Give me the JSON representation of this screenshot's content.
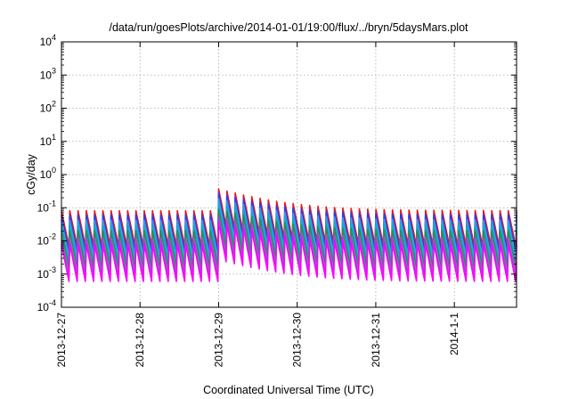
{
  "chart_data": {
    "type": "line",
    "title": "/data/run/goesPlots/archive/2014-01-01/19:00/flux/../bryn/5daysMars.plot",
    "xlabel": "Coordinated Universal Time (UTC)",
    "ylabel": "cGy/day",
    "yscale": "log",
    "ylim": [
      0.0001,
      10000
    ],
    "yticks": [
      {
        "base": "10",
        "exp": "-4"
      },
      {
        "base": "10",
        "exp": "-3"
      },
      {
        "base": "10",
        "exp": "-2"
      },
      {
        "base": "10",
        "exp": "-1"
      },
      {
        "base": "10",
        "exp": "0"
      },
      {
        "base": "10",
        "exp": "1"
      },
      {
        "base": "10",
        "exp": "2"
      },
      {
        "base": "10",
        "exp": "3"
      },
      {
        "base": "10",
        "exp": "4"
      }
    ],
    "xlim": [
      "2013-12-27T00:00",
      "2014-01-01T19:00"
    ],
    "xticks": [
      "2013-12-27",
      "2013-12-28",
      "2013-12-29",
      "2013-12-30",
      "2013-12-31",
      "2014-1-1"
    ],
    "grid": true,
    "legend": "none",
    "pattern": {
      "cycles": 55,
      "enhancement_start": "2013-12-29T00:00",
      "enhancement_peak": 4.5,
      "enhancement_decay_days": 0.55
    },
    "series": [
      {
        "color": "#e41a1c",
        "peak": 0.082,
        "trough": 0.007
      },
      {
        "color": "#1f3fff",
        "peak": 0.06,
        "trough": 0.0045
      },
      {
        "color": "#3a9adf",
        "peak": 0.042,
        "trough": 0.0033
      },
      {
        "color": "#00b4c8",
        "peak": 0.028,
        "trough": 0.0021
      },
      {
        "color": "#2e8b57",
        "peak": 0.02,
        "trough": 0.0015
      },
      {
        "color": "#9a4bd8",
        "peak": 0.012,
        "trough": 0.0009
      },
      {
        "color": "#ff00ff",
        "peak": 0.008,
        "trough": 0.0006
      }
    ]
  }
}
